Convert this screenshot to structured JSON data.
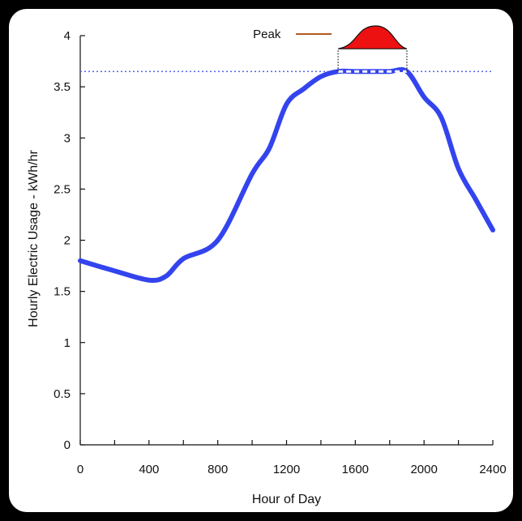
{
  "chart_data": {
    "type": "line",
    "title": "",
    "xlabel": "Hour of Day",
    "ylabel": "Hourly Electric Usage - kWh/hr",
    "xlim": [
      0,
      2400
    ],
    "ylim": [
      0,
      4
    ],
    "x_ticks": [
      0,
      400,
      800,
      1200,
      1600,
      2000,
      2400
    ],
    "x_tick_labels": [
      "0",
      "400",
      "800",
      "1200",
      "1600",
      "2000",
      "2400"
    ],
    "y_ticks": [
      0,
      0.5,
      1,
      1.5,
      2,
      2.5,
      3,
      3.5,
      4
    ],
    "y_tick_labels": [
      "0",
      "0.5",
      "1",
      "1.5",
      "2",
      "2.5",
      "3",
      "3.5",
      "4"
    ],
    "grid": false,
    "series": [
      {
        "color": "#3344ee",
        "x": [
          0,
          200,
          400,
          500,
          600,
          800,
          1000,
          1100,
          1200,
          1300,
          1400,
          1500,
          1600,
          1700,
          1800,
          1900,
          2000,
          2100,
          2200,
          2300,
          2400
        ],
        "y": [
          1.8,
          1.7,
          1.61,
          1.65,
          1.82,
          2.0,
          2.65,
          2.9,
          3.33,
          3.48,
          3.6,
          3.65,
          3.65,
          3.65,
          3.65,
          3.65,
          3.4,
          3.2,
          2.7,
          2.4,
          2.1
        ]
      }
    ],
    "threshold": {
      "y": 3.65,
      "color": "#5566ee",
      "style": "dotted"
    },
    "peak_region": {
      "label": "Peak",
      "x_start": 1500,
      "x_end": 1900,
      "x_peak": 1720,
      "fill_color": "#ee1111"
    }
  }
}
